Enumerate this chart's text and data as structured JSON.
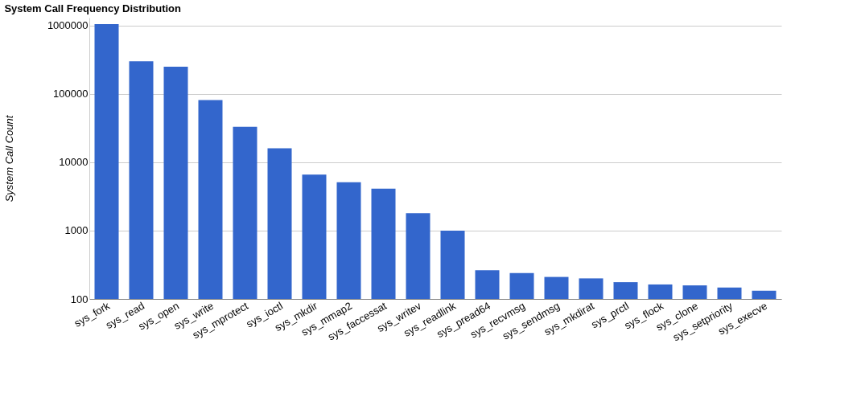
{
  "chart_data": {
    "type": "bar",
    "title": "System Call Frequency Distribution",
    "ylabel": "System Call Count",
    "categories": [
      "sys_fork",
      "sys_read",
      "sys_open",
      "sys_write",
      "sys_mprotect",
      "sys_ioctl",
      "sys_mkdir",
      "sys_mmap2",
      "sys_faccessat",
      "sys_writev",
      "sys_readlink",
      "sys_pread64",
      "sys_recvmsg",
      "sys_sendmsg",
      "sys_mkdirat",
      "sys_prctl",
      "sys_flock",
      "sys_clone",
      "sys_setpriority",
      "sys_execve"
    ],
    "values": [
      1050000,
      300000,
      250000,
      81000,
      33000,
      16000,
      6600,
      5100,
      4100,
      1800,
      1000,
      264,
      239,
      210,
      200,
      176,
      163,
      158,
      147,
      132
    ],
    "color": "#3366cc",
    "log": "y",
    "ylim": [
      100,
      1300000
    ],
    "yticks": [
      100,
      1000,
      10000,
      100000,
      1000000
    ],
    "grid": "y"
  }
}
